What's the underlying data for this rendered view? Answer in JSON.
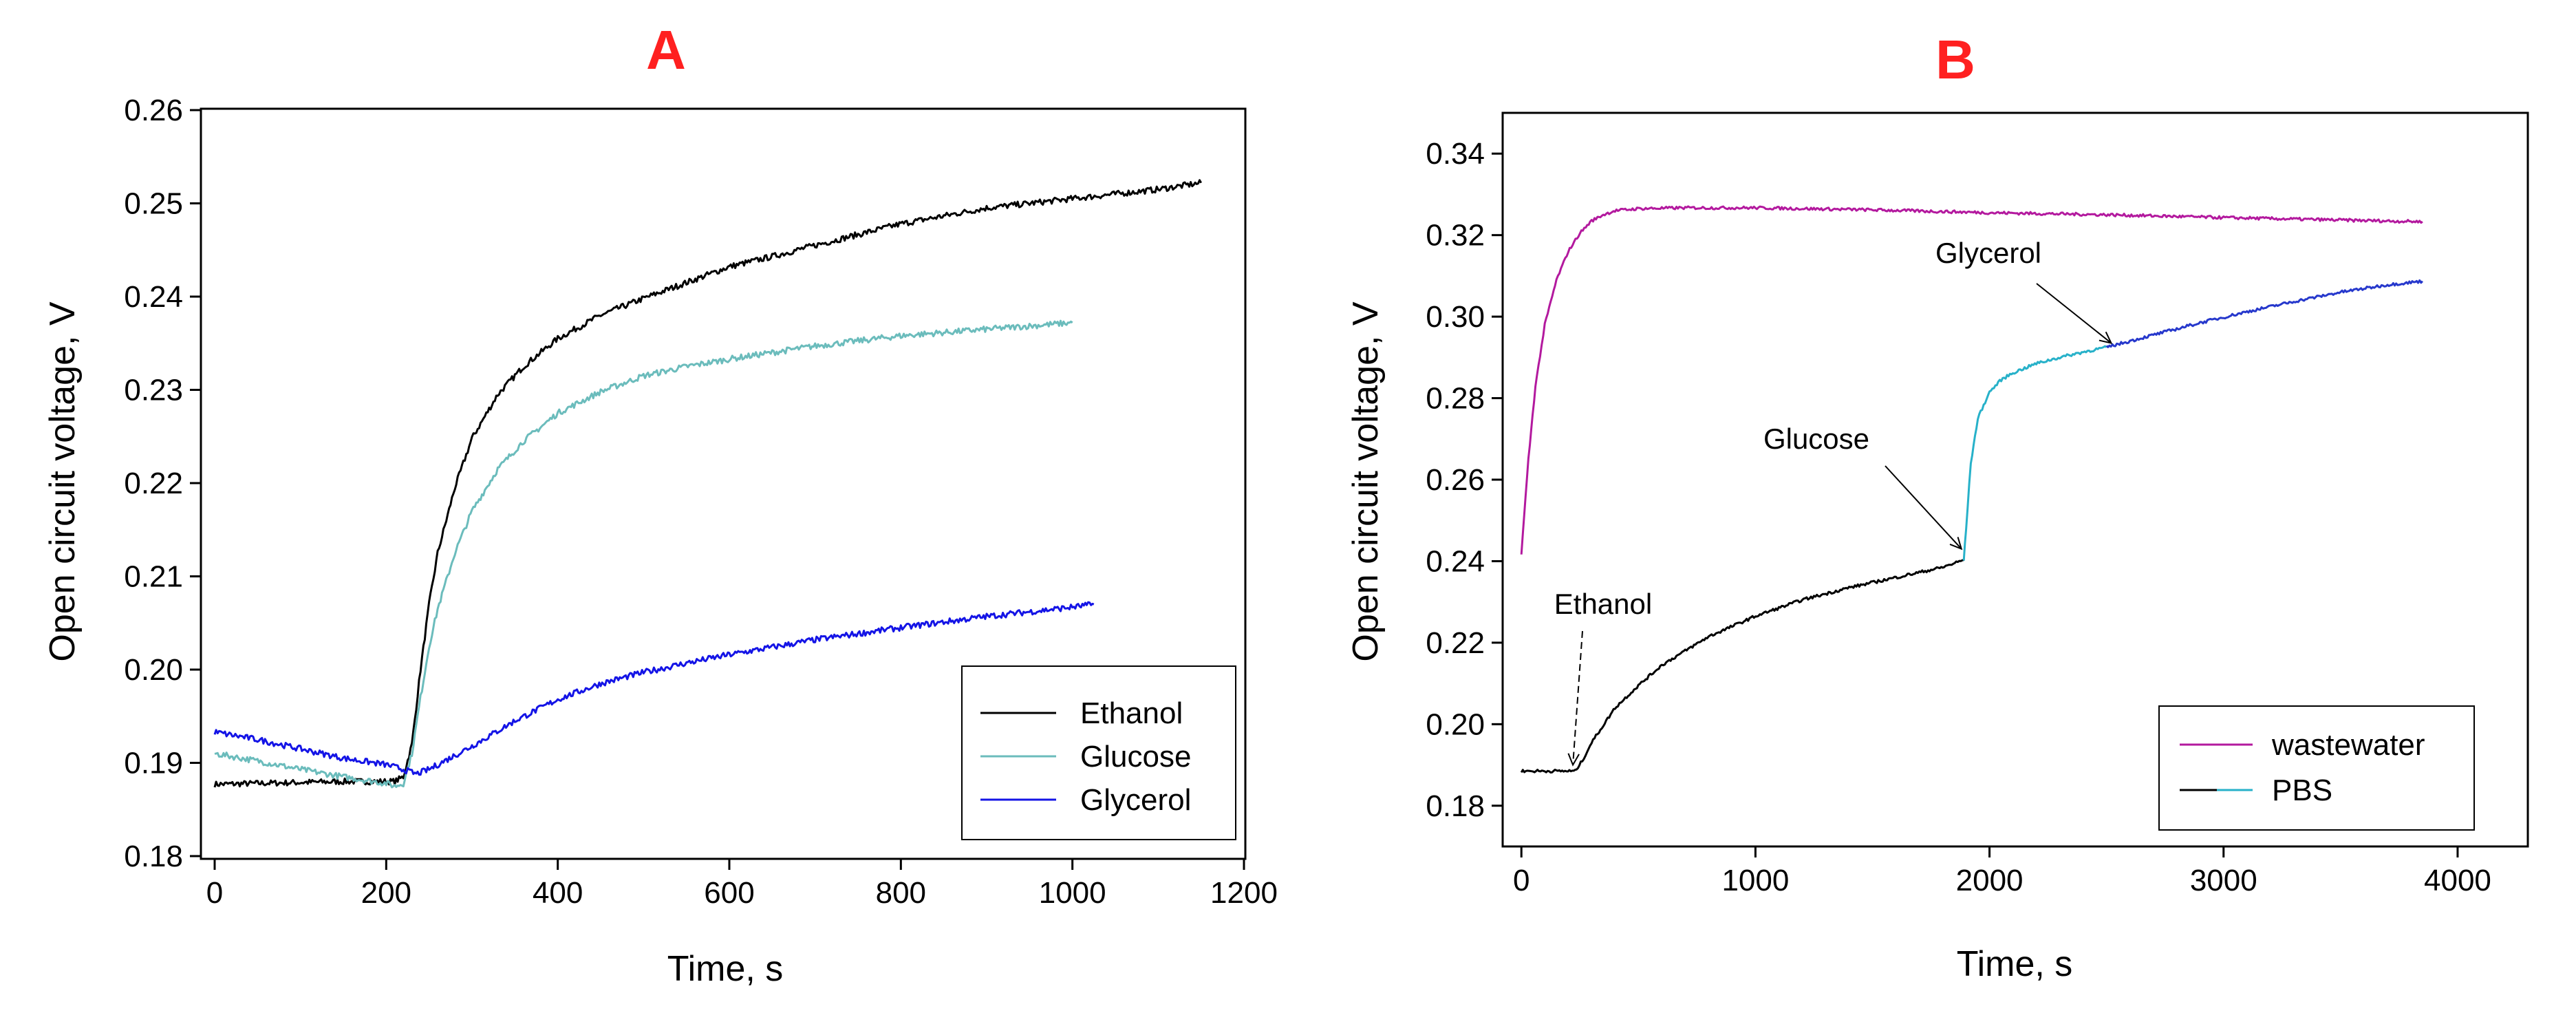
{
  "chart_data": [
    {
      "type": "line",
      "panel": "A",
      "title": "",
      "xlabel": "Time, s",
      "ylabel": "Open circuit voltage, V",
      "xlim": [
        0,
        1200
      ],
      "ylim": [
        0.18,
        0.26
      ],
      "xticks": [
        0,
        200,
        400,
        600,
        800,
        1000,
        1200
      ],
      "yticks": [
        0.18,
        0.19,
        0.2,
        0.21,
        0.22,
        0.23,
        0.24,
        0.25,
        0.26
      ],
      "yticklabels": [
        "0.18",
        "0.19",
        "0.20",
        "0.21",
        "0.22",
        "0.23",
        "0.24",
        "0.25",
        "0.26"
      ],
      "legend_position": "bottom-right",
      "series": [
        {
          "name": "Ethanol",
          "color": "#000000",
          "x": [
            0,
            50,
            100,
            150,
            200,
            210,
            220,
            230,
            240,
            250,
            260,
            280,
            300,
            330,
            360,
            400,
            450,
            500,
            550,
            600,
            650,
            700,
            800,
            900,
            1000,
            1100,
            1150
          ],
          "y": [
            0.1877,
            0.1878,
            0.1879,
            0.188,
            0.188,
            0.188,
            0.1885,
            0.192,
            0.2,
            0.207,
            0.2125,
            0.2195,
            0.2248,
            0.2295,
            0.2325,
            0.2355,
            0.238,
            0.2398,
            0.2415,
            0.2432,
            0.2443,
            0.2455,
            0.2478,
            0.2495,
            0.2505,
            0.2515,
            0.2522
          ]
        },
        {
          "name": "Glucose",
          "color": "#6bbcbc",
          "x": [
            0,
            50,
            100,
            150,
            200,
            210,
            220,
            230,
            240,
            250,
            260,
            280,
            300,
            330,
            360,
            400,
            450,
            500,
            550,
            600,
            650,
            700,
            800,
            900,
            1000
          ],
          "y": [
            0.191,
            0.1902,
            0.1893,
            0.1885,
            0.1878,
            0.1875,
            0.1878,
            0.191,
            0.197,
            0.2025,
            0.2065,
            0.2125,
            0.217,
            0.2215,
            0.2245,
            0.2275,
            0.2298,
            0.2315,
            0.2325,
            0.2333,
            0.234,
            0.2347,
            0.2358,
            0.2365,
            0.2372
          ]
        },
        {
          "name": "Glycerol",
          "color": "#1414e6",
          "x": [
            0,
            50,
            100,
            150,
            200,
            220,
            235,
            250,
            270,
            300,
            350,
            400,
            450,
            500,
            550,
            600,
            650,
            700,
            800,
            900,
            1000,
            1025
          ],
          "y": [
            0.1933,
            0.1925,
            0.1915,
            0.1905,
            0.1898,
            0.1893,
            0.1888,
            0.1893,
            0.1903,
            0.1918,
            0.1945,
            0.1968,
            0.1985,
            0.1997,
            0.2007,
            0.2016,
            0.2024,
            0.2032,
            0.2045,
            0.2057,
            0.2067,
            0.207
          ]
        }
      ]
    },
    {
      "type": "line",
      "panel": "B",
      "title": "",
      "xlabel": "Time, s",
      "ylabel": "Open circuit voltage, V",
      "xlim": [
        -80,
        4300
      ],
      "ylim": [
        0.17,
        0.35
      ],
      "xticks": [
        0,
        1000,
        2000,
        3000,
        4000
      ],
      "yticks": [
        0.18,
        0.2,
        0.22,
        0.24,
        0.26,
        0.28,
        0.3,
        0.32,
        0.34
      ],
      "yticklabels": [
        "0.18",
        "0.20",
        "0.22",
        "0.24",
        "0.26",
        "0.28",
        "0.30",
        "0.32",
        "0.34"
      ],
      "legend_position": "bottom-right",
      "series": [
        {
          "name": "wastewater",
          "color": "#b3199e",
          "x": [
            0,
            30,
            60,
            100,
            150,
            200,
            250,
            300,
            350,
            400,
            500,
            700,
            1000,
            1500,
            2000,
            2500,
            3000,
            3500,
            3850
          ],
          "y": [
            0.242,
            0.265,
            0.283,
            0.298,
            0.309,
            0.316,
            0.3205,
            0.3235,
            0.325,
            0.326,
            0.3265,
            0.3267,
            0.3267,
            0.3262,
            0.3255,
            0.325,
            0.3243,
            0.3237,
            0.3233
          ]
        },
        {
          "name": "PBS",
          "color": "#000000",
          "secondary_color": "#27b1c9",
          "segments": [
            {
              "color": "#000000",
              "x": [
                0,
                100,
                230,
                260,
                300,
                400,
                500,
                600,
                800,
                1000,
                1200,
                1400,
                1600,
                1800,
                1890
              ],
              "y": [
                0.1885,
                0.1885,
                0.1885,
                0.191,
                0.1955,
                0.204,
                0.2095,
                0.2145,
                0.2215,
                0.2265,
                0.2305,
                0.2335,
                0.236,
                0.2385,
                0.2403
              ]
            },
            {
              "color": "#27b1c9",
              "x": [
                1890,
                1900,
                1920,
                1950,
                2000,
                2050,
                2100,
                2200,
                2300,
                2400,
                2500
              ],
              "y": [
                0.2403,
                0.248,
                0.264,
                0.275,
                0.2815,
                0.2845,
                0.2862,
                0.2885,
                0.29,
                0.2913,
                0.2925
              ]
            },
            {
              "color": "#2638cc",
              "x": [
                2500,
                2700,
                2900,
                3100,
                3300,
                3500,
                3700,
                3850
              ],
              "y": [
                0.2925,
                0.2955,
                0.2985,
                0.3012,
                0.3037,
                0.306,
                0.3078,
                0.3087
              ]
            }
          ]
        }
      ],
      "annotations": [
        {
          "text": "Ethanol",
          "target_x": 220,
          "target_y": 0.189
        },
        {
          "text": "Glucose",
          "target_x": 1880,
          "target_y": 0.242
        },
        {
          "text": "Glycerol",
          "target_x": 2520,
          "target_y": 0.2925
        }
      ]
    }
  ]
}
